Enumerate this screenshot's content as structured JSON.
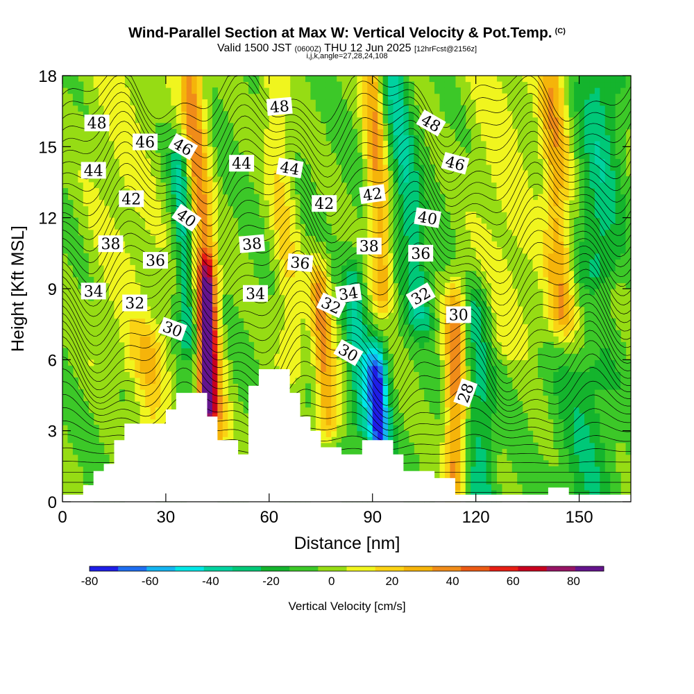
{
  "header": {
    "title": "Wind-Parallel Section at Max W: Vertical Velocity & Pot.Temp.",
    "copyright": "(C)",
    "valid_main": "Valid 1500 JST",
    "valid_utc": "(0600Z)",
    "valid_date": "THU 12 Jun 2025",
    "forecast": "[12hrFcst@2156z]",
    "indices": "i,j,k,angle=27,28,24,108"
  },
  "chart_data": {
    "type": "heatmap",
    "xlabel": "Distance [nm]",
    "ylabel": "Height [Kft MSL]",
    "xlim": [
      0,
      165
    ],
    "ylim": [
      0,
      18
    ],
    "x_ticks": [
      0,
      30,
      60,
      90,
      120,
      150
    ],
    "y_ticks": [
      0,
      3,
      6,
      9,
      12,
      15,
      18
    ],
    "colorbar": {
      "label": "Vertical Velocity [cm/s]",
      "ticks": [
        -80,
        -60,
        -40,
        -20,
        0,
        20,
        40,
        60,
        80
      ],
      "bins": [
        -80,
        -70,
        -60,
        -50,
        -40,
        -30,
        -20,
        -10,
        0,
        10,
        20,
        30,
        40,
        50,
        60,
        70,
        80,
        90
      ],
      "colors": [
        "#1e1ee6",
        "#1e6ef0",
        "#14b4f0",
        "#00e6e6",
        "#00d2a0",
        "#00c878",
        "#14b42d",
        "#3cc828",
        "#96dc14",
        "#f0f51e",
        "#fad214",
        "#f5b40a",
        "#f08c19",
        "#eb5a14",
        "#e61e14",
        "#c8001e",
        "#961464",
        "#64148c"
      ]
    },
    "background_fill": "#96dc14",
    "w_features": [
      {
        "x": 44,
        "zbot": 3,
        "ztop": 18,
        "w": 45,
        "hw": 3.5,
        "lean": -0.45
      },
      {
        "x": 42,
        "zbot": 4,
        "ztop": 9,
        "w": 65,
        "hw": 2.5,
        "lean": 0
      },
      {
        "x": 37,
        "zbot": 7,
        "ztop": 14,
        "w": -35,
        "hw": 3,
        "lean": -0.4
      },
      {
        "x": 67,
        "zbot": 6,
        "ztop": 18,
        "w": 20,
        "hw": 4,
        "lean": -0.5
      },
      {
        "x": 77,
        "zbot": 3.5,
        "ztop": 9,
        "w": 40,
        "hw": 3,
        "lean": -0.4
      },
      {
        "x": 87,
        "zbot": 3.5,
        "ztop": 9,
        "w": -30,
        "hw": 3,
        "lean": -0.45
      },
      {
        "x": 92,
        "zbot": 2.6,
        "ztop": 5.2,
        "w": -75,
        "hw": 3,
        "lean": -0.3
      },
      {
        "x": 93,
        "zbot": 9,
        "ztop": 18,
        "w": 40,
        "hw": 3,
        "lean": -0.35
      },
      {
        "x": 104,
        "zbot": 8,
        "ztop": 18,
        "w": -30,
        "hw": 4,
        "lean": -0.8
      },
      {
        "x": 114,
        "zbot": 1,
        "ztop": 8,
        "w": 45,
        "hw": 3,
        "lean": 0
      },
      {
        "x": 122,
        "zbot": 0,
        "ztop": 8,
        "w": -25,
        "hw": 4,
        "lean": -0.2
      },
      {
        "x": 145,
        "zbot": 8,
        "ztop": 18,
        "w": 35,
        "hw": 4,
        "lean": -0.3
      },
      {
        "x": 156,
        "zbot": 10,
        "ztop": 18,
        "w": -25,
        "hw": 6,
        "lean": 0
      },
      {
        "x": 152,
        "zbot": 0,
        "ztop": 5,
        "w": -18,
        "hw": 8,
        "lean": 0
      },
      {
        "x": 25,
        "zbot": 3,
        "ztop": 6,
        "w": 22,
        "hw": 5,
        "lean": 0
      },
      {
        "x": 20,
        "zbot": 6,
        "ztop": 18,
        "w": 12,
        "hw": 12,
        "lean": -0.3
      },
      {
        "x": 130,
        "zbot": 7,
        "ztop": 18,
        "w": 14,
        "hw": 10,
        "lean": -0.3
      }
    ],
    "terrain_x": [
      0,
      6,
      6,
      9,
      9,
      12,
      12,
      15,
      15,
      18,
      18,
      21,
      21,
      27,
      27,
      30,
      30,
      33,
      33,
      36,
      36,
      42,
      42,
      45,
      45,
      48,
      48,
      51,
      51,
      54,
      54,
      57,
      57,
      60,
      60,
      66,
      66,
      69,
      69,
      72,
      72,
      75,
      75,
      78,
      78,
      81,
      81,
      87,
      87,
      96,
      96,
      99,
      99,
      102,
      102,
      108,
      108,
      114,
      114,
      123,
      123,
      141,
      141,
      147,
      147,
      165
    ],
    "terrain_z": [
      0.3,
      0.3,
      0.7,
      0.7,
      1.3,
      1.3,
      1.6,
      1.6,
      2.6,
      2.6,
      3.3,
      3.3,
      3.3,
      3.3,
      3.3,
      3.3,
      3.9,
      3.9,
      4.6,
      4.6,
      4.6,
      4.6,
      3.6,
      3.6,
      2.6,
      2.6,
      2.6,
      2.6,
      2.0,
      2.0,
      4.9,
      4.9,
      5.6,
      5.6,
      5.6,
      5.6,
      4.6,
      4.6,
      3.6,
      3.6,
      3.0,
      3.0,
      2.3,
      2.3,
      2.3,
      2.3,
      2.0,
      2.0,
      2.6,
      2.6,
      2.0,
      2.0,
      1.3,
      1.3,
      1.3,
      1.3,
      1.0,
      1.0,
      0.3,
      0.3,
      0.3,
      0.3,
      0.6,
      0.6,
      0.3,
      0.3
    ],
    "theta_contours": {
      "levels_min": 28,
      "levels_max": 48,
      "step": 0.5,
      "labels": [
        {
          "text": "48",
          "x": 10,
          "z": 16.0,
          "angle": 0
        },
        {
          "text": "48",
          "x": 63,
          "z": 16.7,
          "angle": -5
        },
        {
          "text": "48",
          "x": 107,
          "z": 16.0,
          "angle": 30
        },
        {
          "text": "46",
          "x": 24,
          "z": 15.2,
          "angle": 0
        },
        {
          "text": "46",
          "x": 35,
          "z": 15.0,
          "angle": 30
        },
        {
          "text": "46",
          "x": 114,
          "z": 14.3,
          "angle": 15
        },
        {
          "text": "44",
          "x": 9,
          "z": 14.0,
          "angle": 0
        },
        {
          "text": "44",
          "x": 52,
          "z": 14.3,
          "angle": 0
        },
        {
          "text": "44",
          "x": 66,
          "z": 14.1,
          "angle": 10
        },
        {
          "text": "42",
          "x": 20,
          "z": 12.8,
          "angle": 0
        },
        {
          "text": "42",
          "x": 76,
          "z": 12.6,
          "angle": 0
        },
        {
          "text": "42",
          "x": 90,
          "z": 13.0,
          "angle": -8
        },
        {
          "text": "40",
          "x": 36,
          "z": 12.0,
          "angle": 35
        },
        {
          "text": "40",
          "x": 106,
          "z": 12.0,
          "angle": 10
        },
        {
          "text": "38",
          "x": 14,
          "z": 10.9,
          "angle": 0
        },
        {
          "text": "38",
          "x": 55,
          "z": 10.9,
          "angle": -5
        },
        {
          "text": "38",
          "x": 89,
          "z": 10.8,
          "angle": 0
        },
        {
          "text": "36",
          "x": 27,
          "z": 10.2,
          "angle": 0
        },
        {
          "text": "36",
          "x": 69,
          "z": 10.1,
          "angle": 5
        },
        {
          "text": "36",
          "x": 104,
          "z": 10.5,
          "angle": 0
        },
        {
          "text": "34",
          "x": 9,
          "z": 8.9,
          "angle": 0
        },
        {
          "text": "34",
          "x": 56,
          "z": 8.8,
          "angle": 0
        },
        {
          "text": "34",
          "x": 83,
          "z": 8.8,
          "angle": -8
        },
        {
          "text": "32",
          "x": 21,
          "z": 8.4,
          "angle": 0
        },
        {
          "text": "32",
          "x": 78,
          "z": 8.3,
          "angle": 25
        },
        {
          "text": "32",
          "x": 104,
          "z": 8.7,
          "angle": -30
        },
        {
          "text": "30",
          "x": 32,
          "z": 7.3,
          "angle": 20
        },
        {
          "text": "30",
          "x": 83,
          "z": 6.3,
          "angle": 30
        },
        {
          "text": "30",
          "x": 115,
          "z": 7.9,
          "angle": 0
        },
        {
          "text": "28",
          "x": 117,
          "z": 4.6,
          "angle": -70
        }
      ]
    }
  }
}
